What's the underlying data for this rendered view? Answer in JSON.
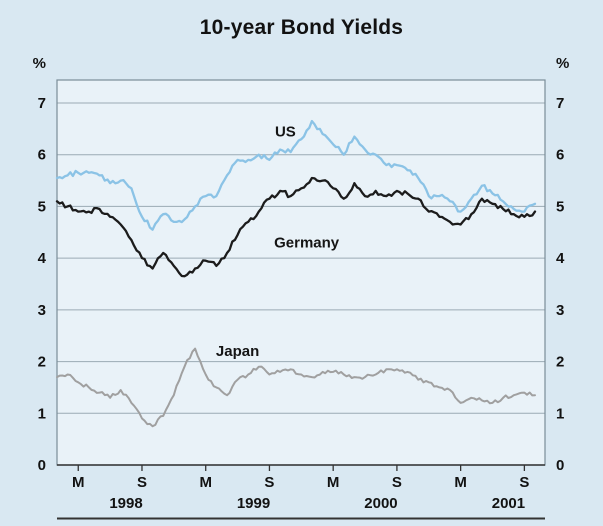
{
  "page": {
    "title": "10-year Bond Yields",
    "y_unit_left": "%",
    "y_unit_right": "%"
  },
  "colors": {
    "background": "#d9e8f2",
    "plot_background": "#e9f2f8",
    "gridline": "#9aaab4",
    "plot_border": "#7b8d98",
    "axis_line": "#333333",
    "text": "#121212",
    "us_line": "#8bc3e6",
    "germany_line": "#1c1c1c",
    "japan_line": "#a0a0a0"
  },
  "chart_data": {
    "type": "line",
    "title": "10-year Bond Yields",
    "ylabel": "%",
    "ylim": [
      0,
      7
    ],
    "y_ticks": [
      0,
      1,
      2,
      3,
      4,
      5,
      6,
      7
    ],
    "grid": "horizontal",
    "legend": "inline-annotations",
    "x_range": {
      "start": "1998-01",
      "end": "2001-10",
      "frequency": "monthly"
    },
    "x_ticks": [
      {
        "label": "M",
        "month_index": 2
      },
      {
        "label": "S",
        "month_index": 8
      },
      {
        "label": "M",
        "month_index": 14
      },
      {
        "label": "S",
        "month_index": 20
      },
      {
        "label": "M",
        "month_index": 26
      },
      {
        "label": "S",
        "month_index": 32
      },
      {
        "label": "M",
        "month_index": 38
      },
      {
        "label": "S",
        "month_index": 44
      }
    ],
    "x_year_labels": [
      {
        "label": "1998",
        "month_index": 6.5
      },
      {
        "label": "1999",
        "month_index": 18.5
      },
      {
        "label": "2000",
        "month_index": 30.5
      },
      {
        "label": "2001",
        "month_index": 42.5
      }
    ],
    "series": [
      {
        "name": "US",
        "color": "#8bc3e6",
        "values": [
          5.55,
          5.6,
          5.65,
          5.65,
          5.6,
          5.45,
          5.5,
          5.35,
          4.8,
          4.55,
          4.85,
          4.7,
          4.75,
          5.0,
          5.2,
          5.2,
          5.6,
          5.9,
          5.9,
          6.0,
          5.9,
          6.1,
          6.05,
          6.3,
          6.65,
          6.4,
          6.2,
          6.0,
          6.35,
          6.1,
          6.0,
          5.8,
          5.8,
          5.7,
          5.55,
          5.2,
          5.2,
          5.1,
          4.9,
          5.15,
          5.4,
          5.25,
          5.1,
          4.95,
          4.9,
          5.05
        ]
      },
      {
        "name": "Germany",
        "color": "#1c1c1c",
        "values": [
          5.1,
          5.0,
          4.9,
          4.9,
          4.95,
          4.8,
          4.65,
          4.35,
          4.0,
          3.8,
          4.1,
          3.85,
          3.65,
          3.8,
          3.95,
          3.85,
          4.1,
          4.45,
          4.7,
          4.9,
          5.15,
          5.3,
          5.2,
          5.35,
          5.55,
          5.5,
          5.35,
          5.15,
          5.45,
          5.2,
          5.3,
          5.2,
          5.3,
          5.25,
          5.15,
          4.9,
          4.8,
          4.7,
          4.65,
          4.85,
          5.15,
          5.05,
          4.95,
          4.85,
          4.8,
          4.9
        ]
      },
      {
        "name": "Japan",
        "color": "#a0a0a0",
        "values": [
          1.7,
          1.75,
          1.6,
          1.5,
          1.4,
          1.3,
          1.45,
          1.2,
          0.9,
          0.75,
          0.95,
          1.35,
          1.9,
          2.25,
          1.75,
          1.5,
          1.35,
          1.65,
          1.75,
          1.9,
          1.75,
          1.8,
          1.85,
          1.75,
          1.7,
          1.8,
          1.8,
          1.75,
          1.7,
          1.7,
          1.75,
          1.85,
          1.85,
          1.8,
          1.65,
          1.6,
          1.5,
          1.45,
          1.2,
          1.3,
          1.25,
          1.2,
          1.3,
          1.35,
          1.4,
          1.35
        ]
      }
    ],
    "annotations": [
      {
        "label": "US",
        "x_index": 21.5,
        "y": 6.45
      },
      {
        "label": "Germany",
        "x_index": 23.5,
        "y": 4.3
      },
      {
        "label": "Japan",
        "x_index": 17,
        "y": 2.2
      }
    ]
  }
}
